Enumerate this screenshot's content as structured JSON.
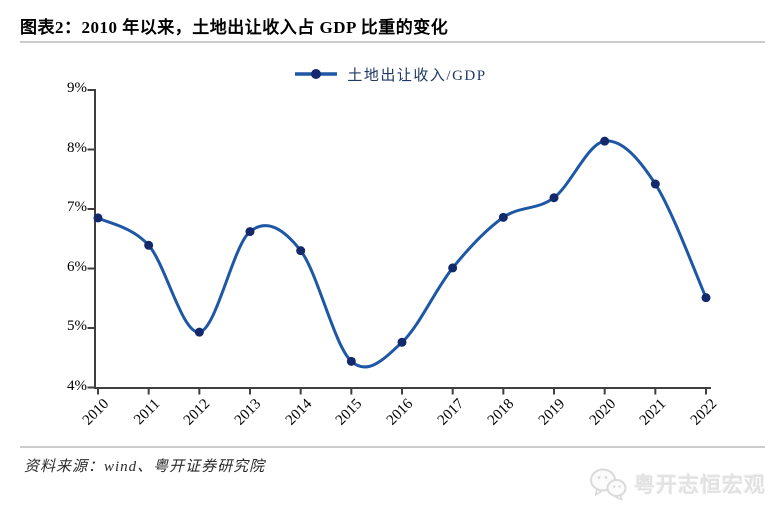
{
  "title": "图表2：2010 年以来，土地出让收入占 GDP 比重的变化",
  "legend": {
    "label": "土地出让收入/GDP"
  },
  "footer": {
    "source": "资料来源：wind、粤开证券研究院"
  },
  "watermark": {
    "icon": "wechat-icon",
    "label": "粤开志恒宏观"
  },
  "colors": {
    "line": "#1d57a5",
    "marker": "#13296b",
    "axis": "#3f3f3f",
    "separator": "#cccccc",
    "legend_text": "#1f3864",
    "watermark": "#e2e2e2"
  },
  "chart_data": {
    "type": "line",
    "title": "图表2：2010 年以来，土地出让收入占 GDP 比重的变化",
    "categories": [
      "2010",
      "2011",
      "2012",
      "2013",
      "2014",
      "2015",
      "2016",
      "2017",
      "2018",
      "2019",
      "2020",
      "2021",
      "2022"
    ],
    "series": [
      {
        "name": "土地出让收入/GDP",
        "values": [
          6.85,
          6.39,
          4.93,
          6.62,
          6.3,
          4.44,
          4.76,
          6.01,
          6.86,
          7.19,
          8.14,
          7.42,
          5.51
        ]
      }
    ],
    "xlabel": "",
    "ylabel": "",
    "ylim": [
      4,
      9
    ],
    "yticks": [
      "9%",
      "8%",
      "7%",
      "6%",
      "5%",
      "4%"
    ],
    "grid": false,
    "legend_position": "top",
    "smooth": true,
    "marker": "circle"
  }
}
